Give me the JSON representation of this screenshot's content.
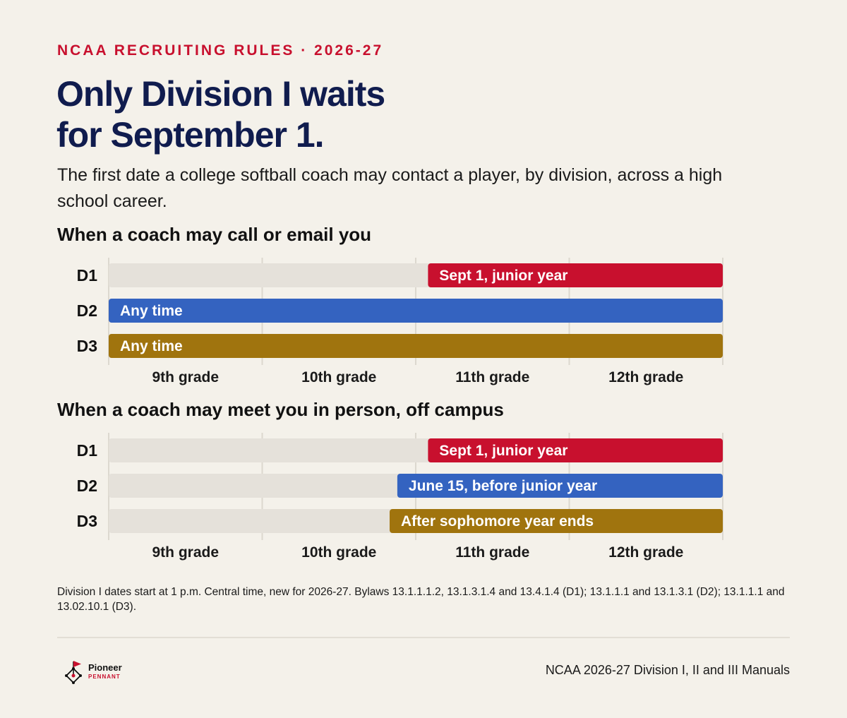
{
  "header": {
    "kicker": "NCAA RECRUITING RULES · 2026-27",
    "headline_line1": "Only Division I waits",
    "headline_line2": "for September 1.",
    "dek": "The first date a college softball coach may contact a player, by division, across a high school career."
  },
  "colors": {
    "background": "#f4f1ea",
    "track": "#e5e1da",
    "D1": "#c8102e",
    "D2": "#3463c0",
    "D3": "#a0740e",
    "headline": "#101c4e",
    "kicker": "#c8102e"
  },
  "chart_data": [
    {
      "type": "bar",
      "orientation": "horizontal-timeline",
      "title": "When a coach may call or email you",
      "x_categories": [
        "9th grade",
        "10th grade",
        "11th grade",
        "12th grade"
      ],
      "xlim": [
        0,
        4
      ],
      "grid": true,
      "series": [
        {
          "name": "D1",
          "start": 2.08,
          "end": 4,
          "label": "Sept 1, junior year",
          "color": "#c8102e"
        },
        {
          "name": "D2",
          "start": 0,
          "end": 4,
          "label": "Any time",
          "color": "#3463c0"
        },
        {
          "name": "D3",
          "start": 0,
          "end": 4,
          "label": "Any time",
          "color": "#a0740e"
        }
      ]
    },
    {
      "type": "bar",
      "orientation": "horizontal-timeline",
      "title": "When a coach may meet you in person, off campus",
      "x_categories": [
        "9th grade",
        "10th grade",
        "11th grade",
        "12th grade"
      ],
      "xlim": [
        0,
        4
      ],
      "grid": true,
      "series": [
        {
          "name": "D1",
          "start": 2.08,
          "end": 4,
          "label": "Sept 1, junior year",
          "color": "#c8102e"
        },
        {
          "name": "D2",
          "start": 1.88,
          "end": 4,
          "label": "June 15, before junior year",
          "color": "#3463c0"
        },
        {
          "name": "D3",
          "start": 1.83,
          "end": 4,
          "label": "After sophomore year ends",
          "color": "#a0740e"
        }
      ]
    }
  ],
  "footnote": "Division I dates start at 1 p.m. Central time, new for 2026-27. Bylaws 13.1.1.1.2, 13.1.3.1.4 and 13.4.1.4 (D1); 13.1.1.1 and 13.1.3.1 (D2); 13.1.1.1 and 13.02.10.1 (D3).",
  "footer": {
    "logo_name": "Pioneer",
    "logo_sub": "PENNANT",
    "logo_icon": "pennant-diamond-icon",
    "source": "NCAA 2026-27 Division I, II and III Manuals"
  }
}
